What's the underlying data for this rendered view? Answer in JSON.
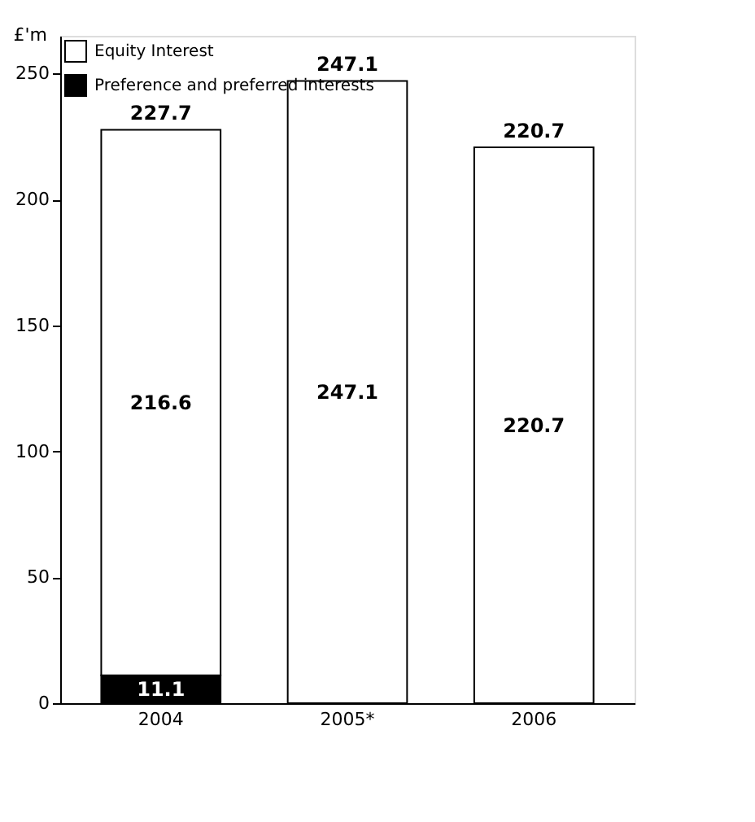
{
  "chart_data": {
    "type": "bar",
    "stacked": true,
    "ylabel": "£'m",
    "categories": [
      "2004",
      "2005*",
      "2006"
    ],
    "series": [
      {
        "name": "Preference and preferred interests",
        "color": "#000000",
        "values": [
          11.1,
          0,
          0
        ],
        "value_labels": [
          "11.1",
          null,
          null
        ]
      },
      {
        "name": "Equity Interest",
        "color": "#ffffff",
        "values": [
          216.6,
          247.1,
          220.7
        ],
        "value_labels": [
          "216.6",
          "247.1",
          "220.7"
        ]
      }
    ],
    "totals": [
      "227.7",
      "247.1",
      "220.7"
    ],
    "ylim": [
      0,
      265
    ],
    "yticks": [
      0,
      50,
      100,
      150,
      200,
      250
    ],
    "grid": false,
    "legend": "top left"
  }
}
